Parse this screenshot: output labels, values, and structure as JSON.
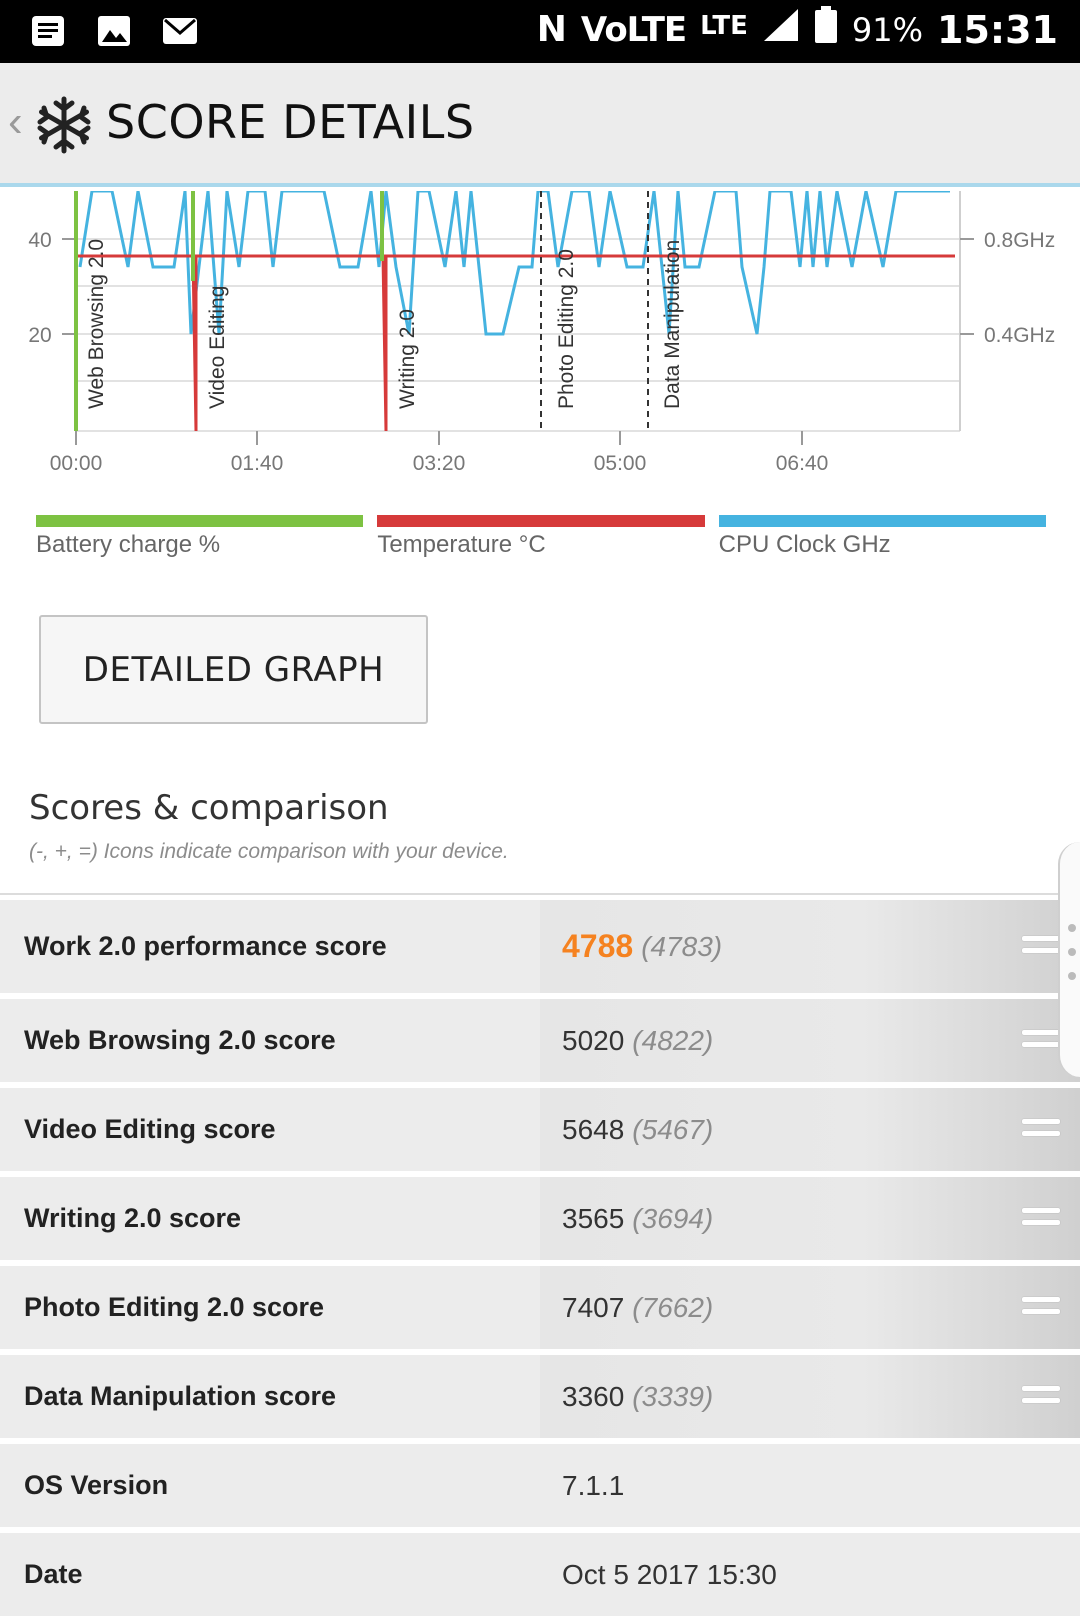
{
  "status_bar": {
    "network": "VoLTE",
    "lte": "LTE",
    "battery_percent": "91%",
    "time": "15:31"
  },
  "header": {
    "title": "SCORE DETAILS"
  },
  "chart_data": {
    "type": "line",
    "x_ticks": [
      "00:00",
      "01:40",
      "03:20",
      "05:00",
      "06:40"
    ],
    "y_left_ticks": [
      "40",
      "20"
    ],
    "y_right_ticks": [
      "0.8GHz",
      "0.4GHz"
    ],
    "segments": [
      "Web Browsing 2.0",
      "Video Editing",
      "Writing 2.0",
      "Photo Editing 2.0",
      "Data Manipulation"
    ],
    "series": [
      {
        "name": "Battery charge %",
        "color": "#7dc242"
      },
      {
        "name": "Temperature °C",
        "color": "#d63a3a"
      },
      {
        "name": "CPU Clock GHz",
        "color": "#45b3e0"
      }
    ]
  },
  "legend": {
    "items": [
      {
        "label": "Battery charge %",
        "color": "#7dc242"
      },
      {
        "label": "Temperature °C",
        "color": "#d63a3a"
      },
      {
        "label": "CPU Clock GHz",
        "color": "#45b3e0"
      }
    ]
  },
  "detailed_graph_button": "DETAILED GRAPH",
  "scores": {
    "title": "Scores & comparison",
    "subtitle": "(-, +, =) Icons indicate comparison with your device.",
    "rows": [
      {
        "label": "Work 2.0 performance score",
        "value": "4788",
        "compare": "(4783)"
      },
      {
        "label": "Web Browsing 2.0 score",
        "value": "5020",
        "compare": "(4822)"
      },
      {
        "label": "Video Editing score",
        "value": "5648",
        "compare": "(5467)"
      },
      {
        "label": "Writing 2.0 score",
        "value": "3565",
        "compare": "(3694)"
      },
      {
        "label": "Photo Editing 2.0 score",
        "value": "7407",
        "compare": "(7662)"
      },
      {
        "label": "Data Manipulation score",
        "value": "3360",
        "compare": "(3339)"
      },
      {
        "label": "OS Version",
        "value": "7.1.1"
      },
      {
        "label": "Date",
        "value": "Oct 5 2017 15:30"
      }
    ]
  }
}
